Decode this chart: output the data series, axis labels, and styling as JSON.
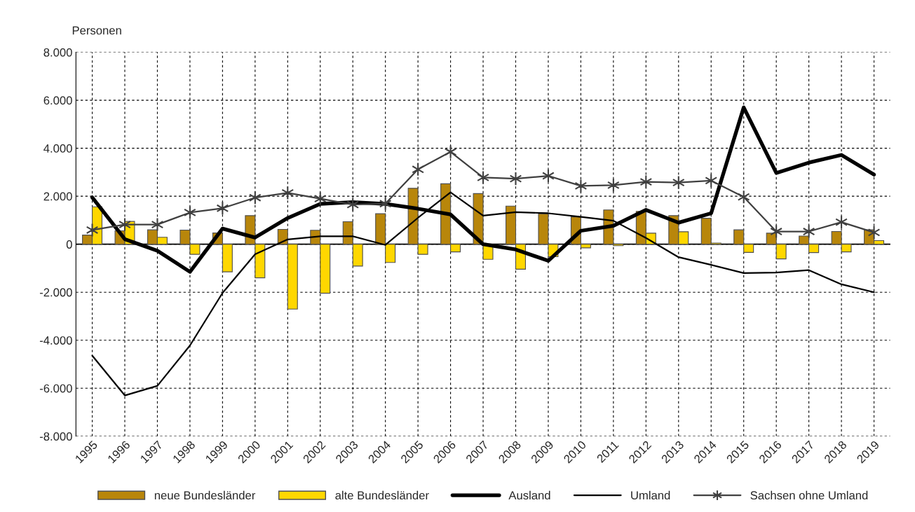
{
  "chart_data": {
    "type": "bar",
    "ylabel": "Personen",
    "categories": [
      "1995",
      "1996",
      "1997",
      "1998",
      "1999",
      "2000",
      "2001",
      "2002",
      "2003",
      "2004",
      "2005",
      "2006",
      "2007",
      "2008",
      "2009",
      "2010",
      "2011",
      "2012",
      "2013",
      "2014",
      "2015",
      "2016",
      "2017",
      "2018",
      "2019"
    ],
    "series": [
      {
        "name": "neue Bundesländer",
        "color": "#b8860b",
        "values": [
          380,
          560,
          600,
          590,
          470,
          1190,
          620,
          580,
          940,
          1270,
          2330,
          2520,
          2110,
          1590,
          1270,
          1140,
          1430,
          1370,
          1190,
          1080,
          600,
          460,
          340,
          530,
          600
        ]
      },
      {
        "name": "alte Bundesländer",
        "color": "#ffd700",
        "values": [
          1560,
          950,
          290,
          -420,
          -1150,
          -1400,
          -2700,
          -2040,
          -910,
          -760,
          -420,
          -320,
          -630,
          -1040,
          -520,
          -150,
          -60,
          460,
          520,
          50,
          -340,
          -610,
          -350,
          -320,
          150
        ]
      },
      {
        "name": "Ausland",
        "type": "line",
        "color": "#000000",
        "values": [
          1950,
          210,
          -270,
          -1150,
          650,
          280,
          1090,
          1680,
          1750,
          1680,
          1480,
          1240,
          0,
          -220,
          -690,
          560,
          770,
          1430,
          900,
          1290,
          5700,
          2970,
          3400,
          3720,
          2900
        ]
      },
      {
        "name": "Umland",
        "type": "line",
        "color": "#000000",
        "values": [
          -4640,
          -6300,
          -5900,
          -4220,
          -2030,
          -420,
          200,
          330,
          330,
          -30,
          1100,
          2160,
          1190,
          1340,
          1290,
          1140,
          980,
          260,
          -540,
          -860,
          -1200,
          -1180,
          -1080,
          -1670,
          -2000
        ]
      },
      {
        "name": "Sachsen ohne Umland",
        "type": "line",
        "color": "#404040",
        "marker": "cross",
        "values": [
          590,
          820,
          820,
          1320,
          1500,
          1940,
          2140,
          1900,
          1650,
          1690,
          3120,
          3850,
          2780,
          2730,
          2850,
          2430,
          2460,
          2600,
          2570,
          2650,
          1970,
          530,
          530,
          920,
          490
        ]
      }
    ],
    "ylim": [
      -8000,
      8000
    ],
    "yticks": [
      {
        "value": -8000,
        "label": "-8.000"
      },
      {
        "value": -6000,
        "label": "-6.000"
      },
      {
        "value": -4000,
        "label": "-4.000"
      },
      {
        "value": -2000,
        "label": "-2.000"
      },
      0,
      {
        "value": 2000,
        "label": "2.000"
      },
      {
        "value": 4000,
        "label": "4.000"
      },
      {
        "value": 6000,
        "label": "6.000"
      },
      {
        "value": 8000,
        "label": "8.000"
      }
    ],
    "grid": true,
    "legend": "bottom",
    "line_style": "solid"
  }
}
